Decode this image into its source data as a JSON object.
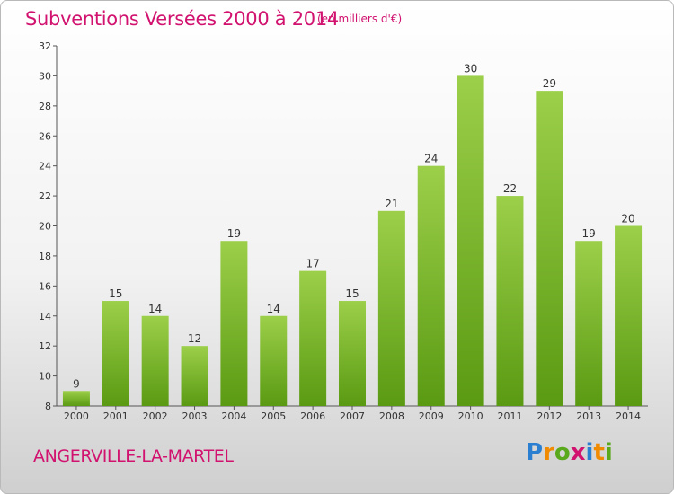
{
  "chart_data": {
    "type": "bar",
    "title": "Subventions Versées 2000 à 2014",
    "unit": "(en milliers d'€)",
    "categories": [
      "2000",
      "2001",
      "2002",
      "2003",
      "2004",
      "2005",
      "2006",
      "2007",
      "2008",
      "2009",
      "2010",
      "2011",
      "2012",
      "2013",
      "2014"
    ],
    "values": [
      9,
      15,
      14,
      12,
      19,
      14,
      17,
      15,
      21,
      24,
      30,
      22,
      29,
      19,
      20
    ],
    "ylim": [
      8,
      32
    ],
    "yticks": [
      8,
      10,
      12,
      14,
      16,
      18,
      20,
      22,
      24,
      26,
      28,
      30,
      32
    ],
    "grid": false,
    "bar_color_top": "#9ccf4a",
    "bar_color_bottom": "#5a9a12"
  },
  "footer": {
    "commune": "ANGERVILLE-LA-MARTEL",
    "logo_text": "Proxiti"
  },
  "colors": {
    "title": "#d1126f",
    "logo": [
      "#2b7fd0",
      "#f08a00",
      "#5aa81b",
      "#d1126f",
      "#2b7fd0",
      "#f08a00",
      "#5aa81b"
    ]
  }
}
